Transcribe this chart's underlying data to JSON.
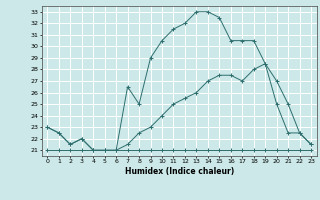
{
  "title": "",
  "xlabel": "Humidex (Indice chaleur)",
  "bg_color": "#cce8e8",
  "grid_color": "#ffffff",
  "line_color": "#2e6e6e",
  "xlim": [
    -0.5,
    23.5
  ],
  "ylim": [
    20.5,
    33.5
  ],
  "xticks": [
    0,
    1,
    2,
    3,
    4,
    5,
    6,
    7,
    8,
    9,
    10,
    11,
    12,
    13,
    14,
    15,
    16,
    17,
    18,
    19,
    20,
    21,
    22,
    23
  ],
  "yticks": [
    21,
    22,
    23,
    24,
    25,
    26,
    27,
    28,
    29,
    30,
    31,
    32,
    33
  ],
  "line1_x": [
    0,
    1,
    2,
    3,
    4,
    5,
    6,
    7,
    8,
    9,
    10,
    11,
    12,
    13,
    14,
    15,
    16,
    17,
    18,
    19,
    20,
    21,
    22,
    23
  ],
  "line1_y": [
    21,
    21,
    21,
    21,
    21,
    21,
    21,
    21,
    21,
    21,
    21,
    21,
    21,
    21,
    21,
    21,
    21,
    21,
    21,
    21,
    21,
    21,
    21,
    21
  ],
  "line2_x": [
    0,
    1,
    2,
    3,
    4,
    5,
    6,
    7,
    8,
    9,
    10,
    11,
    12,
    13,
    14,
    15,
    16,
    17,
    18,
    19,
    20,
    21,
    22,
    23
  ],
  "line2_y": [
    23,
    22.5,
    21.5,
    22,
    21,
    21,
    21,
    21.5,
    22.5,
    23,
    24,
    25,
    25.5,
    26,
    27,
    27.5,
    27.5,
    27,
    28,
    28.5,
    27,
    25,
    22.5,
    21.5
  ],
  "line3_x": [
    0,
    1,
    2,
    3,
    4,
    5,
    6,
    7,
    8,
    9,
    10,
    11,
    12,
    13,
    14,
    15,
    16,
    17,
    18,
    19,
    20,
    21,
    22,
    23
  ],
  "line3_y": [
    23,
    22.5,
    21.5,
    22,
    21,
    21,
    21,
    26.5,
    25,
    29,
    30.5,
    31.5,
    32,
    33,
    33,
    32.5,
    30.5,
    30.5,
    30.5,
    28.5,
    25,
    22.5,
    22.5,
    21.5
  ]
}
